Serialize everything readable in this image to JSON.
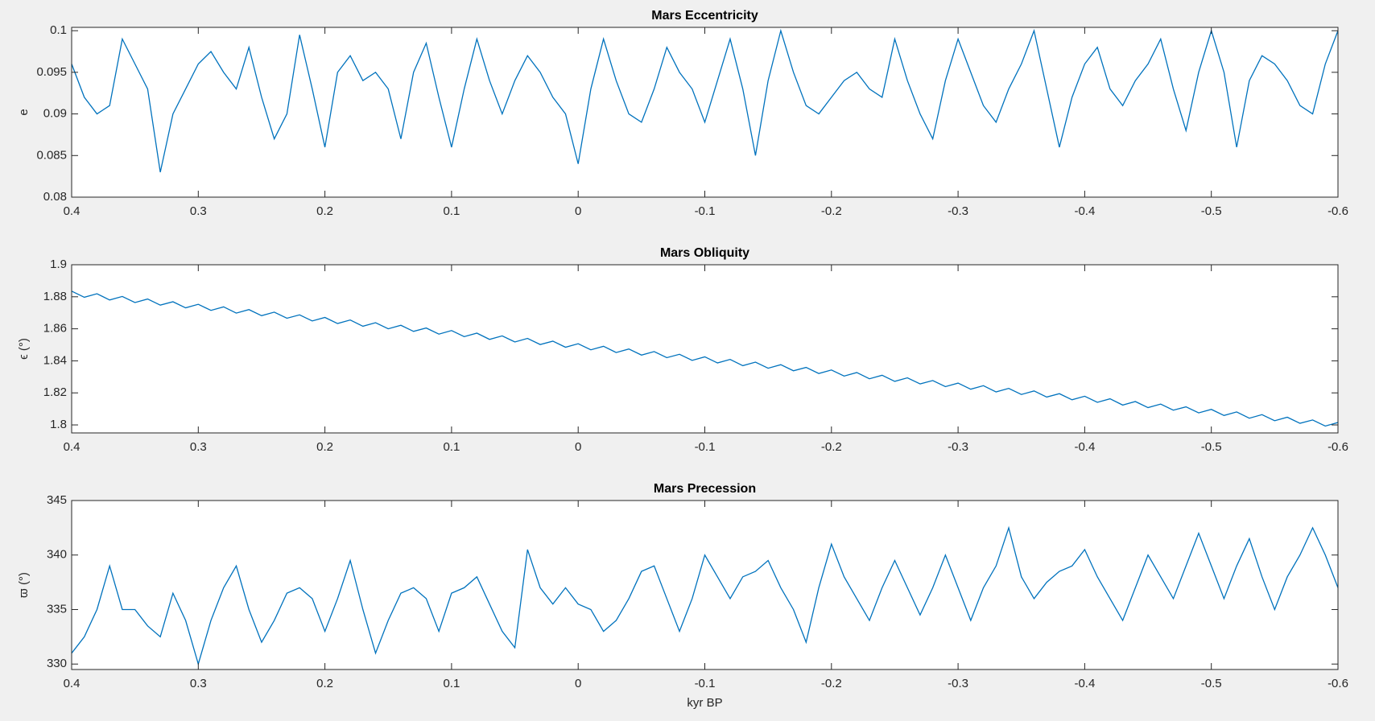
{
  "chart_data": [
    {
      "type": "line",
      "title": "Mars Eccentricity",
      "ylabel": "e",
      "color": "#0072bd",
      "xlim": [
        0.4,
        -0.6
      ],
      "xticks": [
        0.4,
        0.3,
        0.2,
        0.1,
        0,
        -0.1,
        -0.2,
        -0.3,
        -0.4,
        -0.5,
        -0.6
      ],
      "ylim": [
        0.08,
        0.1004
      ],
      "yticks": [
        0.08,
        0.085,
        0.09,
        0.095,
        0.1
      ],
      "x": [
        0.4,
        0.39,
        0.38,
        0.37,
        0.36,
        0.35,
        0.34,
        0.33,
        0.32,
        0.31,
        0.3,
        0.29,
        0.28,
        0.27,
        0.26,
        0.25,
        0.24,
        0.23,
        0.22,
        0.21,
        0.2,
        0.19,
        0.18,
        0.17,
        0.16,
        0.15,
        0.14,
        0.13,
        0.12,
        0.11,
        0.1,
        0.09,
        0.08,
        0.07,
        0.06,
        0.05,
        0.04,
        0.03,
        0.02,
        0.01,
        0,
        -0.01,
        -0.02,
        -0.03,
        -0.04,
        -0.05,
        -0.06,
        -0.07,
        -0.08,
        -0.09,
        -0.1,
        -0.11,
        -0.12,
        -0.13,
        -0.14,
        -0.15,
        -0.16,
        -0.17,
        -0.18,
        -0.19,
        -0.2,
        -0.21,
        -0.22,
        -0.23,
        -0.24,
        -0.25,
        -0.26,
        -0.27,
        -0.28,
        -0.29,
        -0.3,
        -0.31,
        -0.32,
        -0.33,
        -0.34,
        -0.35,
        -0.36,
        -0.37,
        -0.38,
        -0.39,
        -0.4,
        -0.41,
        -0.42,
        -0.43,
        -0.44,
        -0.45,
        -0.46,
        -0.47,
        -0.48,
        -0.49,
        -0.5,
        -0.51,
        -0.52,
        -0.53,
        -0.54,
        -0.55,
        -0.56,
        -0.57,
        -0.58,
        -0.59,
        -0.6
      ],
      "values": [
        0.096,
        0.092,
        0.09,
        0.091,
        0.099,
        0.096,
        0.093,
        0.083,
        0.09,
        0.093,
        0.096,
        0.0975,
        0.095,
        0.093,
        0.098,
        0.092,
        0.087,
        0.09,
        0.0995,
        0.093,
        0.086,
        0.095,
        0.097,
        0.094,
        0.095,
        0.093,
        0.087,
        0.095,
        0.0985,
        0.092,
        0.086,
        0.093,
        0.099,
        0.094,
        0.09,
        0.094,
        0.097,
        0.095,
        0.092,
        0.09,
        0.084,
        0.093,
        0.099,
        0.094,
        0.09,
        0.089,
        0.093,
        0.098,
        0.095,
        0.093,
        0.089,
        0.094,
        0.099,
        0.093,
        0.085,
        0.094,
        0.1,
        0.095,
        0.091,
        0.09,
        0.092,
        0.094,
        0.095,
        0.093,
        0.092,
        0.099,
        0.094,
        0.09,
        0.087,
        0.094,
        0.099,
        0.095,
        0.091,
        0.089,
        0.093,
        0.096,
        0.1,
        0.093,
        0.086,
        0.092,
        0.096,
        0.098,
        0.093,
        0.091,
        0.094,
        0.096,
        0.099,
        0.093,
        0.088,
        0.095,
        0.1,
        0.095,
        0.086,
        0.094,
        0.097,
        0.096,
        0.094,
        0.091,
        0.09,
        0.096,
        0.1
      ]
    },
    {
      "type": "line",
      "title": "Mars Obliquity",
      "ylabel": "ϵ (°)",
      "color": "#0072bd",
      "xlim": [
        0.4,
        -0.6
      ],
      "xticks": [
        0.4,
        0.3,
        0.2,
        0.1,
        0,
        -0.1,
        -0.2,
        -0.3,
        -0.4,
        -0.5,
        -0.6
      ],
      "ylim": [
        1.795,
        1.9
      ],
      "yticks": [
        1.8,
        1.82,
        1.84,
        1.86,
        1.88,
        1.9
      ],
      "x": [
        0.4,
        0.39,
        0.38,
        0.37,
        0.36,
        0.35,
        0.34,
        0.33,
        0.32,
        0.31,
        0.3,
        0.29,
        0.28,
        0.27,
        0.26,
        0.25,
        0.24,
        0.23,
        0.22,
        0.21,
        0.2,
        0.19,
        0.18,
        0.17,
        0.16,
        0.15,
        0.14,
        0.13,
        0.12,
        0.11,
        0.1,
        0.09,
        0.08,
        0.07,
        0.06,
        0.05,
        0.04,
        0.03,
        0.02,
        0.01,
        0,
        -0.01,
        -0.02,
        -0.03,
        -0.04,
        -0.05,
        -0.06,
        -0.07,
        -0.08,
        -0.09,
        -0.1,
        -0.11,
        -0.12,
        -0.13,
        -0.14,
        -0.15,
        -0.16,
        -0.17,
        -0.18,
        -0.19,
        -0.2,
        -0.21,
        -0.22,
        -0.23,
        -0.24,
        -0.25,
        -0.26,
        -0.27,
        -0.28,
        -0.29,
        -0.3,
        -0.31,
        -0.32,
        -0.33,
        -0.34,
        -0.35,
        -0.36,
        -0.37,
        -0.38,
        -0.39,
        -0.4,
        -0.41,
        -0.42,
        -0.43,
        -0.44,
        -0.45,
        -0.46,
        -0.47,
        -0.48,
        -0.49,
        -0.5,
        -0.51,
        -0.52,
        -0.53,
        -0.54,
        -0.55,
        -0.56,
        -0.57,
        -0.58,
        -0.59,
        -0.6
      ],
      "values": [
        1.8835,
        1.8797,
        1.8819,
        1.878,
        1.8802,
        1.8764,
        1.8786,
        1.8748,
        1.8769,
        1.8731,
        1.8753,
        1.8715,
        1.8737,
        1.8698,
        1.872,
        1.8682,
        1.8704,
        1.8666,
        1.8687,
        1.8649,
        1.8671,
        1.8633,
        1.8655,
        1.8616,
        1.8638,
        1.86,
        1.8622,
        1.8584,
        1.8605,
        1.8567,
        1.8589,
        1.8551,
        1.8573,
        1.8534,
        1.8556,
        1.8518,
        1.854,
        1.8502,
        1.8523,
        1.8485,
        1.8507,
        1.8469,
        1.8491,
        1.8452,
        1.8474,
        1.8436,
        1.8458,
        1.842,
        1.8441,
        1.8403,
        1.8425,
        1.8387,
        1.8409,
        1.837,
        1.8392,
        1.8354,
        1.8376,
        1.8338,
        1.8359,
        1.8321,
        1.8343,
        1.8305,
        1.8327,
        1.8288,
        1.831,
        1.8272,
        1.8294,
        1.8256,
        1.8277,
        1.8239,
        1.8261,
        1.8223,
        1.8245,
        1.8206,
        1.8228,
        1.819,
        1.8212,
        1.8174,
        1.8195,
        1.8157,
        1.8179,
        1.8141,
        1.8163,
        1.8124,
        1.8146,
        1.8108,
        1.813,
        1.8092,
        1.8113,
        1.8075,
        1.8097,
        1.8059,
        1.8081,
        1.8042,
        1.8064,
        1.8026,
        1.8048,
        1.801,
        1.8031,
        1.7993,
        1.8015
      ]
    },
    {
      "type": "line",
      "title": "Mars Precession",
      "ylabel": "ϖ (°)",
      "xlabel": "kyr BP",
      "color": "#0072bd",
      "xlim": [
        0.4,
        -0.6
      ],
      "xticks": [
        0.4,
        0.3,
        0.2,
        0.1,
        0,
        -0.1,
        -0.2,
        -0.3,
        -0.4,
        -0.5,
        -0.6
      ],
      "ylim": [
        329.5,
        345
      ],
      "yticks": [
        330,
        335,
        340,
        345
      ],
      "x": [
        0.4,
        0.39,
        0.38,
        0.37,
        0.36,
        0.35,
        0.34,
        0.33,
        0.32,
        0.31,
        0.3,
        0.29,
        0.28,
        0.27,
        0.26,
        0.25,
        0.24,
        0.23,
        0.22,
        0.21,
        0.2,
        0.19,
        0.18,
        0.17,
        0.16,
        0.15,
        0.14,
        0.13,
        0.12,
        0.11,
        0.1,
        0.09,
        0.08,
        0.07,
        0.06,
        0.05,
        0.04,
        0.03,
        0.02,
        0.01,
        0,
        -0.01,
        -0.02,
        -0.03,
        -0.04,
        -0.05,
        -0.06,
        -0.07,
        -0.08,
        -0.09,
        -0.1,
        -0.11,
        -0.12,
        -0.13,
        -0.14,
        -0.15,
        -0.16,
        -0.17,
        -0.18,
        -0.19,
        -0.2,
        -0.21,
        -0.22,
        -0.23,
        -0.24,
        -0.25,
        -0.26,
        -0.27,
        -0.28,
        -0.29,
        -0.3,
        -0.31,
        -0.32,
        -0.33,
        -0.34,
        -0.35,
        -0.36,
        -0.37,
        -0.38,
        -0.39,
        -0.4,
        -0.41,
        -0.42,
        -0.43,
        -0.44,
        -0.45,
        -0.46,
        -0.47,
        -0.48,
        -0.49,
        -0.5,
        -0.51,
        -0.52,
        -0.53,
        -0.54,
        -0.55,
        -0.56,
        -0.57,
        -0.58,
        -0.59,
        -0.6
      ],
      "values": [
        331,
        332.5,
        335,
        339,
        335,
        335,
        333.5,
        332.5,
        336.5,
        334,
        330,
        334,
        337,
        339,
        335,
        332,
        334,
        336.5,
        337,
        336,
        333,
        336,
        339.5,
        335,
        331,
        334,
        336.5,
        337,
        336,
        333,
        336.5,
        337,
        338,
        335.5,
        333,
        331.5,
        340.5,
        337,
        335.5,
        337,
        335.5,
        335,
        333,
        334,
        336,
        338.5,
        339,
        336,
        333,
        336,
        340,
        338,
        336,
        338,
        338.5,
        339.5,
        337,
        335,
        332,
        337,
        341,
        338,
        336,
        334,
        337,
        339.5,
        337,
        334.5,
        337,
        340,
        337,
        334,
        337,
        339,
        342.5,
        338,
        336,
        337.5,
        338.5,
        339,
        340.5,
        338,
        336,
        334,
        337,
        340,
        338,
        336,
        339,
        342,
        339,
        336,
        339,
        341.5,
        338,
        335,
        338,
        340,
        342.5,
        340,
        337
      ]
    }
  ]
}
